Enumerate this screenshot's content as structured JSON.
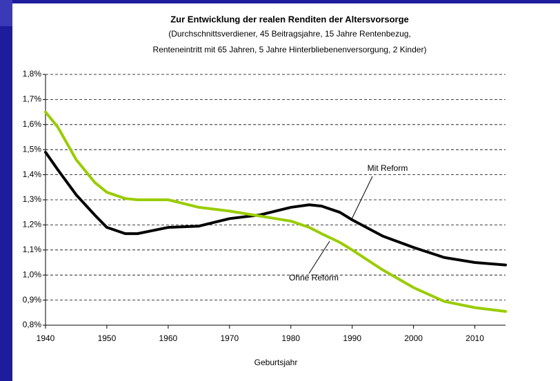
{
  "chart_data": {
    "type": "line",
    "title": "Zur Entwicklung der realen Renditen der Altersvorsorge",
    "subtitle": [
      "(Durchschnittsverdiener, 45 Beitragsjahre, 15 Jahre Rentenbezug,",
      "Renteneintritt mit 65 Jahren, 5 Jahre Hinterbliebenenversorgung, 2 Kinder)"
    ],
    "x_label": "Geburtsjahr",
    "x": [
      1940,
      1942,
      1945,
      1948,
      1950,
      1953,
      1955,
      1958,
      1960,
      1965,
      1970,
      1975,
      1980,
      1983,
      1985,
      1988,
      1990,
      1995,
      2000,
      2005,
      2010,
      2015
    ],
    "series": [
      {
        "name": "Mit Reform",
        "color": "#000000",
        "values": [
          1.49,
          1.42,
          1.32,
          1.24,
          1.19,
          1.165,
          1.165,
          1.18,
          1.19,
          1.195,
          1.225,
          1.24,
          1.27,
          1.28,
          1.275,
          1.25,
          1.22,
          1.155,
          1.11,
          1.07,
          1.05,
          1.04
        ]
      },
      {
        "name": "Ohne Reform",
        "color": "#99cc00",
        "values": [
          1.65,
          1.59,
          1.46,
          1.37,
          1.33,
          1.305,
          1.3,
          1.3,
          1.3,
          1.27,
          1.255,
          1.235,
          1.215,
          1.19,
          1.165,
          1.13,
          1.1,
          1.02,
          0.95,
          0.895,
          0.87,
          0.855
        ]
      }
    ],
    "xlim": [
      1940,
      2015
    ],
    "xticks": [
      1940,
      1950,
      1960,
      1970,
      1980,
      1990,
      2000,
      2010
    ],
    "ylim": [
      0.8,
      1.8
    ],
    "yticks": [
      {
        "value": 0.8,
        "label": "0,8%"
      },
      {
        "value": 0.9,
        "label": "0,9%"
      },
      {
        "value": 1.0,
        "label": "1,0%"
      },
      {
        "value": 1.1,
        "label": "1,1%"
      },
      {
        "value": 1.2,
        "label": "1,2%"
      },
      {
        "value": 1.3,
        "label": "1,3%"
      },
      {
        "value": 1.4,
        "label": "1,4%"
      },
      {
        "value": 1.5,
        "label": "1,5%"
      },
      {
        "value": 1.6,
        "label": "1,6%"
      },
      {
        "value": 1.7,
        "label": "1,7%"
      },
      {
        "value": 1.8,
        "label": "1,8%"
      }
    ],
    "grid": true
  }
}
